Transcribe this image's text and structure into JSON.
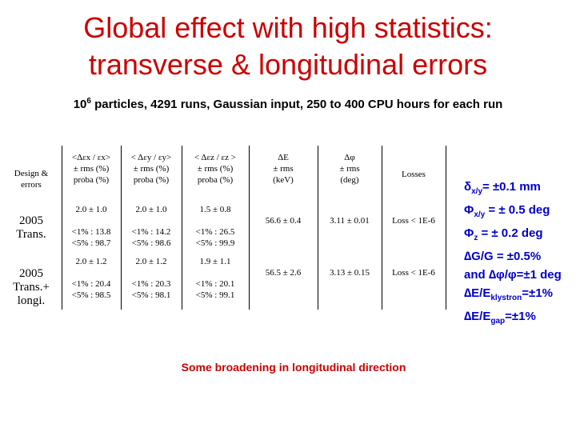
{
  "slide": {
    "title_line1": "Global effect with high statistics:",
    "title_line2": "transverse & longitudinal errors",
    "subtitle_base": "10",
    "subtitle_exp": "6",
    "subtitle_rest": " particles, 4291 runs, Gaussian input, 250 to 400 CPU hours for each run"
  },
  "table": {
    "corner_header": [
      "Design &",
      "errors"
    ],
    "col_headers": [
      [
        "<Δεx / εx>",
        "± rms (%)",
        "proba (%)"
      ],
      [
        "< Δεy / εy>",
        "± rms (%)",
        "proba (%)"
      ],
      [
        "< Δεz / εz >",
        "± rms (%)",
        "proba (%)"
      ],
      [
        "ΔE",
        "± rms",
        "(keV)"
      ],
      [
        "Δφ",
        "± rms",
        "(deg)"
      ],
      [
        "Losses"
      ]
    ],
    "rows": [
      {
        "label_line1": "2005",
        "label_line2": "Trans.",
        "label_line3": "",
        "mean": [
          "2.0 ± 1.0",
          "2.0 ± 1.0",
          "1.5 ± 0.8"
        ],
        "p1": [
          "<1% : 13.8",
          "<1% : 14.2",
          "<1% : 26.5"
        ],
        "p5": [
          "<5% : 98.7",
          "<5% : 98.6",
          "<5% : 99.9"
        ],
        "dE": "56.6 ± 0.4",
        "dphi": "3.11 ± 0.01",
        "losses": "Loss < 1E-6"
      },
      {
        "label_line1": "2005",
        "label_line2": "Trans.+",
        "label_line3": "longi.",
        "mean": [
          "2.0 ± 1.2",
          "2.0 ± 1.2",
          "1.9 ± 1.1"
        ],
        "p1": [
          "<1% : 20.4",
          "<1% : 20.3",
          "<1% : 20.1"
        ],
        "p5": [
          "<5% : 98.5",
          "<5% : 98.1",
          "<5% : 99.1"
        ],
        "dE": "56.5 ± 2.6",
        "dphi": "3.13 ± 0.15",
        "losses": "Loss < 1E-6"
      }
    ]
  },
  "tolerances": {
    "line1_a": "δ",
    "line1_sub": "x/y",
    "line1_b": "= ±0.1 mm",
    "line2_a": "Φ",
    "line2_sub": "x/y",
    "line2_b": " = ± 0.5 deg",
    "line3_a": "Φ",
    "line3_sub": "z",
    "line3_b": " = ± 0.2 deg",
    "line4": "∆G/G = ±0.5%",
    "line5": "and ∆φ/φ=±1 deg",
    "line6_a": "∆E/E",
    "line6_sub": "klystron",
    "line6_b": "=±1%",
    "line7_a": "∆E/E",
    "line7_sub": "gap",
    "line7_b": "=±1%"
  },
  "footer": "Some broadening in longitudinal direction",
  "colors": {
    "title": "#cc0000",
    "tolerances": "#0000cc",
    "footer": "#cc0000"
  }
}
